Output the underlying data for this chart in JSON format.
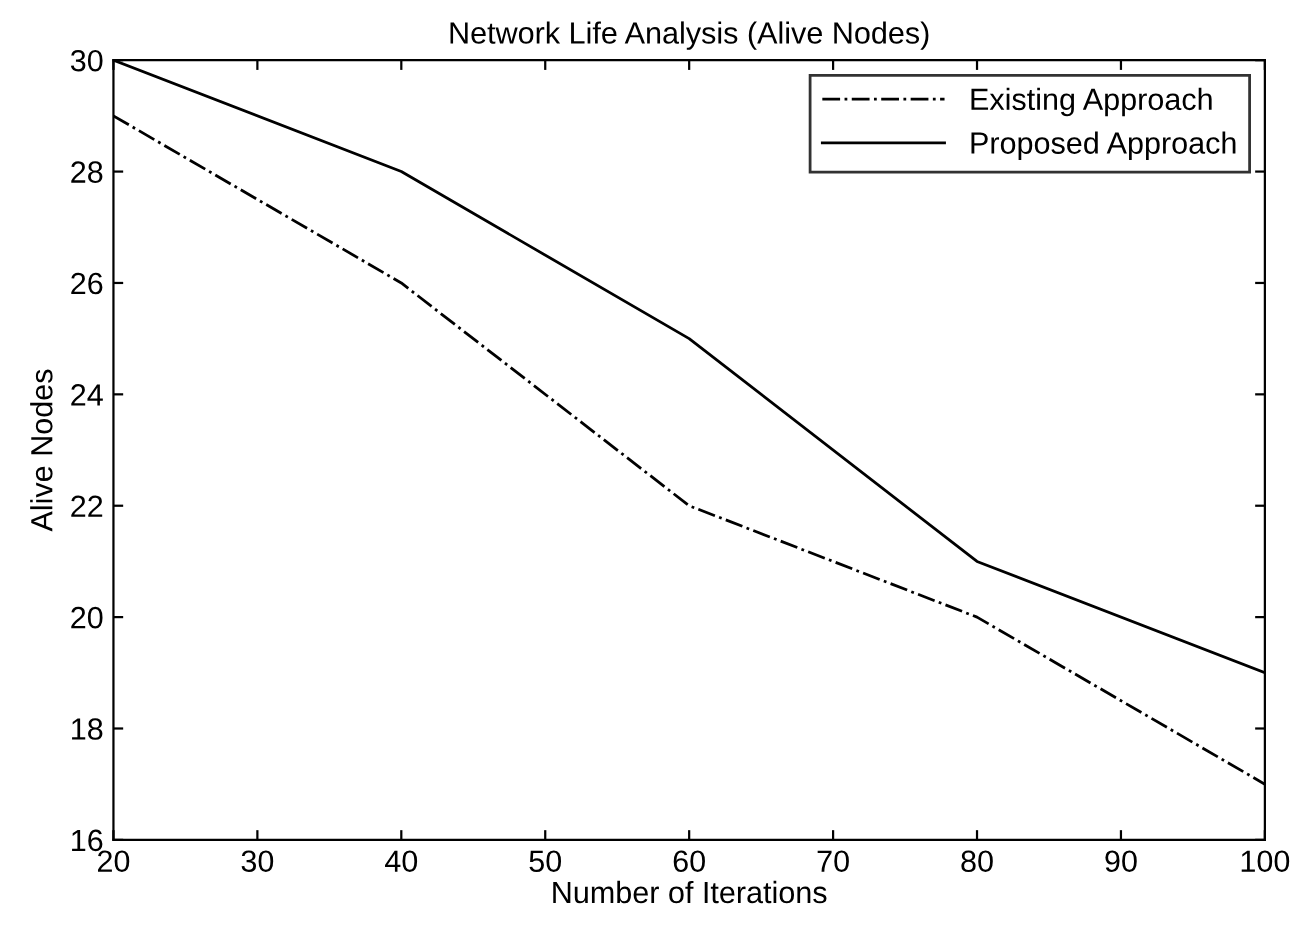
{
  "chart_data": {
    "type": "line",
    "title": "Network Life Analysis (Alive Nodes)",
    "xlabel": "Number of Iterations",
    "ylabel": "Alive Nodes",
    "x": [
      20,
      40,
      60,
      80,
      100
    ],
    "series": [
      {
        "name": "Existing Approach",
        "color": "#000000",
        "line_style": "dashdot",
        "values": [
          29,
          26,
          22,
          20,
          17
        ]
      },
      {
        "name": "Proposed Approach",
        "color": "#000000",
        "line_style": "solid",
        "values": [
          30,
          28,
          25,
          21,
          19
        ]
      }
    ],
    "xlim": [
      20,
      100
    ],
    "xticks": [
      20,
      30,
      40,
      50,
      60,
      70,
      80,
      90,
      100
    ],
    "ylim": [
      16,
      30
    ],
    "yticks": [
      16,
      18,
      20,
      22,
      24,
      26,
      28,
      30
    ],
    "grid": false,
    "legend": "top right",
    "marker": "none"
  }
}
